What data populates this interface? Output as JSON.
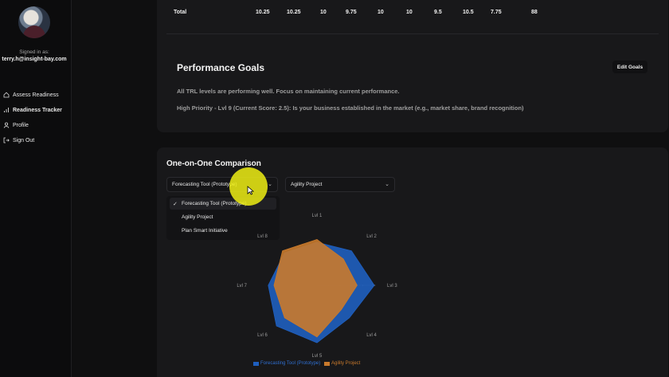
{
  "user": {
    "signed_in_label": "Signed in as:",
    "email": "terry.h@insight-bay.com"
  },
  "nav": [
    {
      "label": "Assess Readiness",
      "icon": "home-icon"
    },
    {
      "label": "Readiness Tracker",
      "icon": "bar-chart-icon",
      "active": true
    },
    {
      "label": "Profile",
      "icon": "user-icon"
    },
    {
      "label": "Sign Out",
      "icon": "sign-out-icon"
    }
  ],
  "totals": {
    "label": "Total",
    "values": [
      "10.25",
      "10.25",
      "10",
      "9.75",
      "10",
      "10",
      "9.5",
      "10.5",
      "7.75",
      "88"
    ]
  },
  "performance_goals": {
    "title": "Performance Goals",
    "edit_label": "Edit Goals",
    "line1": "All TRL levels are performing well. Focus on maintaining current performance.",
    "line2": "High Priority - Lvl 9 (Current Score: 2.5): Is your business established in the market (e.g., market share, brand recognition)"
  },
  "comparison": {
    "title": "One-on-One Comparison",
    "select_left": "Forecasting Tool (Prototype)",
    "select_right": "Agility Project",
    "options": [
      "Forecasting Tool (Prototype)",
      "Agility Project",
      "Plan Smart Initiative"
    ],
    "selected_option": "Forecasting Tool (Prototype)"
  },
  "chart_data": {
    "type": "radar",
    "axes": [
      "Lvl 1",
      "Lvl 2",
      "Lvl 3",
      "Lvl 4",
      "Lvl 5",
      "Lvl 6",
      "Lvl 7",
      "Lvl 8"
    ],
    "rmax": 10,
    "series": [
      {
        "name": "Forecasting Tool (Prototype)",
        "color": "#1f5fbf",
        "values": [
          7.5,
          8.5,
          10,
          8,
          10,
          10,
          8.5,
          8
        ]
      },
      {
        "name": "Agility Project",
        "color": "#c97a2c",
        "values": [
          8,
          6.5,
          7,
          6,
          9,
          8,
          7.5,
          8.5
        ]
      }
    ]
  }
}
